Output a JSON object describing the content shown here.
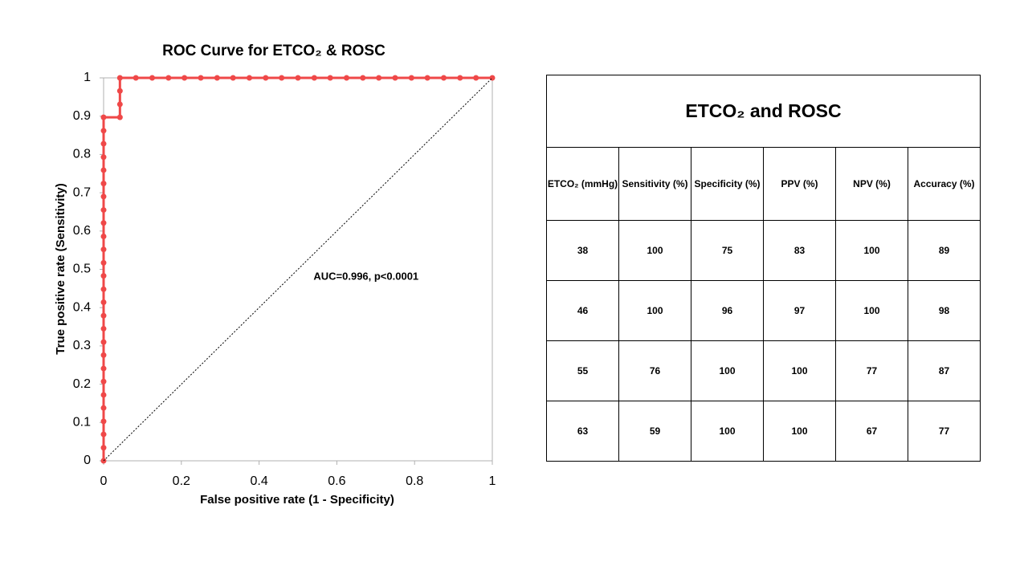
{
  "chart_data": {
    "type": "line",
    "title": "ROC Curve for ETCO₂ & ROSC",
    "x_label": "False positive rate (1 - Specificity)",
    "y_label": "True positive rate (Sensitivity)",
    "annotation": "AUC=0.996, p<0.0001",
    "xlim": [
      0,
      1
    ],
    "xticks": [
      0,
      0.2,
      0.4,
      0.6,
      0.8,
      1
    ],
    "ylim": [
      0,
      1
    ],
    "yticks": [
      0,
      0.1,
      0.2,
      0.3,
      0.4,
      0.5,
      0.6,
      0.7,
      0.8,
      0.9,
      1
    ],
    "series": [
      {
        "color": "#ef4848",
        "markers": true,
        "x": [
          0,
          0,
          0,
          0,
          0,
          0,
          0,
          0,
          0,
          0,
          0,
          0,
          0,
          0,
          0,
          0,
          0,
          0,
          0,
          0,
          0,
          0,
          0,
          0,
          0,
          0,
          0,
          0.042,
          0.042,
          0.042,
          0.042,
          0.083,
          0.125,
          0.167,
          0.208,
          0.25,
          0.292,
          0.333,
          0.375,
          0.417,
          0.458,
          0.5,
          0.542,
          0.583,
          0.625,
          0.667,
          0.708,
          0.75,
          0.792,
          0.833,
          0.875,
          0.917,
          0.958,
          1
        ],
        "values": [
          0,
          0.034,
          0.069,
          0.103,
          0.138,
          0.172,
          0.207,
          0.241,
          0.276,
          0.31,
          0.345,
          0.379,
          0.414,
          0.448,
          0.483,
          0.517,
          0.552,
          0.586,
          0.621,
          0.655,
          0.69,
          0.724,
          0.759,
          0.793,
          0.828,
          0.862,
          0.897,
          0.897,
          0.931,
          0.966,
          1,
          1,
          1,
          1,
          1,
          1,
          1,
          1,
          1,
          1,
          1,
          1,
          1,
          1,
          1,
          1,
          1,
          1,
          1,
          1,
          1,
          1,
          1,
          1
        ]
      },
      {
        "color": "#000000",
        "dashed": true,
        "x": [
          0,
          1
        ],
        "values": [
          0,
          1
        ]
      }
    ]
  },
  "table": {
    "title": "ETCO₂ and ROSC",
    "header": [
      "ETCO₂ (mmHg)",
      "Sensitivity (%)",
      "Specificity (%)",
      "PPV (%)",
      "NPV (%)",
      "Accuracy (%)"
    ],
    "rows": [
      [
        38,
        100,
        75,
        83,
        100,
        89
      ],
      [
        46,
        100,
        96,
        97,
        100,
        98
      ],
      [
        55,
        76,
        100,
        100,
        77,
        87
      ],
      [
        63,
        59,
        100,
        100,
        67,
        77
      ]
    ]
  }
}
